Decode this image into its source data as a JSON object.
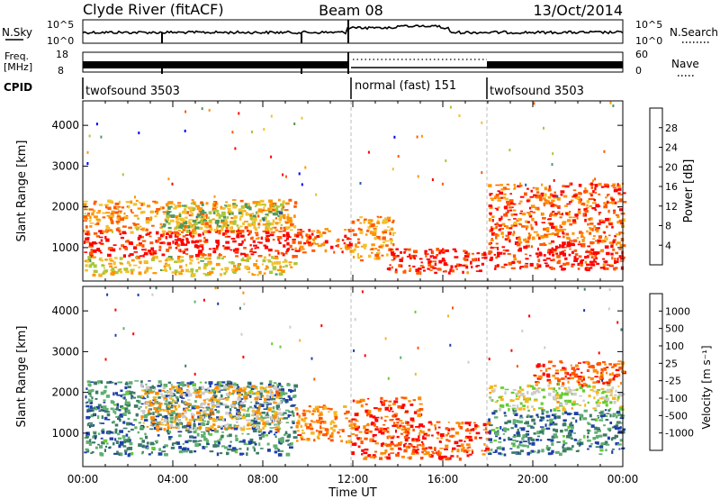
{
  "header": {
    "station": "Clyde River (fitACF)",
    "beam": "Beam 08",
    "date": "13/Oct/2014"
  },
  "summary_panels": {
    "nsky": {
      "left_label": "N.Sky",
      "right_label": "N.Search",
      "left_ticks": [
        "10^5",
        "10^0"
      ],
      "right_ticks": [
        "10^5",
        "10^0"
      ]
    },
    "freq": {
      "left_label_line1": "Freq.",
      "left_label_line2": "[MHz]",
      "right_label": "Nave",
      "left_ticks": [
        "18",
        "8"
      ],
      "right_ticks": [
        "60",
        "0"
      ]
    },
    "cpid": {
      "label": "CPID",
      "segments": [
        {
          "start_hour": 0,
          "end_hour": 12,
          "text": "twofsound 3503"
        },
        {
          "start_hour": 12,
          "end_hour": 18,
          "text": "normal (fast) 151"
        },
        {
          "start_hour": 18,
          "end_hour": 24,
          "text": "twofsound 3503"
        }
      ]
    }
  },
  "chart_data": [
    {
      "type": "heatmap",
      "quantity": "Power",
      "ylabel": "Slant Range [km]",
      "ylim": [
        180,
        4600
      ],
      "yticks": [
        "1000",
        "2000",
        "3000",
        "4000"
      ],
      "xlim": [
        0,
        24
      ],
      "colorbar": {
        "label": "Power [dB]",
        "tick_labels": [
          "28",
          "24",
          "20",
          "16",
          "12",
          "8",
          "4"
        ],
        "colors": [
          "#ff0000",
          "#ff5a00",
          "#ff9400",
          "#f2c12e",
          "#a8c83a",
          "#4c9a5c",
          "#2a5aa8",
          "#0000ff"
        ]
      },
      "regions": [
        {
          "t0": 0.0,
          "t1": 9.4,
          "r0": 800,
          "r1": 1450,
          "level": 0
        },
        {
          "t0": 0.0,
          "t1": 9.4,
          "r0": 1400,
          "r1": 2200,
          "level": 2
        },
        {
          "t0": 0.0,
          "t1": 9.4,
          "r0": 350,
          "r1": 800,
          "level": 3
        },
        {
          "t0": 3.5,
          "t1": 8.8,
          "r0": 1500,
          "r1": 2100,
          "level": 4
        },
        {
          "t0": 9.4,
          "t1": 11.9,
          "r0": 900,
          "r1": 1500,
          "level": 1
        },
        {
          "t0": 11.9,
          "t1": 13.8,
          "r0": 700,
          "r1": 1800,
          "level": 2
        },
        {
          "t0": 13.5,
          "t1": 17.9,
          "r0": 400,
          "r1": 1000,
          "level": 0
        },
        {
          "t0": 18.0,
          "t1": 24.0,
          "r0": 500,
          "r1": 1100,
          "level": 0
        },
        {
          "t0": 18.0,
          "t1": 24.0,
          "r0": 1100,
          "r1": 2600,
          "level": 1
        }
      ]
    },
    {
      "type": "heatmap",
      "quantity": "Velocity",
      "ylabel": "Slant Range [km]",
      "ylim": [
        180,
        4600
      ],
      "yticks": [
        "1000",
        "2000",
        "3000",
        "4000"
      ],
      "xlim": [
        0,
        24
      ],
      "xticks": [
        "00:00",
        "04:00",
        "08:00",
        "12:00",
        "16:00",
        "20:00",
        "00:00"
      ],
      "xlabel": "Time UT",
      "colorbar": {
        "label": "Velocity [m s⁻¹]",
        "tick_labels": [
          "1000",
          "500",
          "100",
          "25",
          "-25",
          "-100",
          "-500",
          "-1000"
        ],
        "colors": [
          "#1f3fa8",
          "#3d7a66",
          "#5fb070",
          "#66cc33",
          "#cccccc",
          "#f4b820",
          "#ff8a00",
          "#ff5500",
          "#ff0000"
        ]
      },
      "regions": [
        {
          "t0": 0.0,
          "t1": 9.4,
          "r0": 500,
          "r1": 2300,
          "level": 1
        },
        {
          "t0": 2.5,
          "t1": 8.8,
          "r0": 1100,
          "r1": 2200,
          "level": 5
        },
        {
          "t0": 9.4,
          "t1": 11.9,
          "r0": 800,
          "r1": 1700,
          "level": 6
        },
        {
          "t0": 11.9,
          "t1": 15.0,
          "r0": 400,
          "r1": 1900,
          "level": 7
        },
        {
          "t0": 15.0,
          "t1": 18.0,
          "r0": 400,
          "r1": 1300,
          "level": 7
        },
        {
          "t0": 18.0,
          "t1": 24.0,
          "r0": 500,
          "r1": 1600,
          "level": 1
        },
        {
          "t0": 18.0,
          "t1": 24.0,
          "r0": 1600,
          "r1": 2200,
          "level": 4
        },
        {
          "t0": 20.0,
          "t1": 24.0,
          "r0": 2200,
          "r1": 2800,
          "level": 7
        }
      ]
    }
  ]
}
